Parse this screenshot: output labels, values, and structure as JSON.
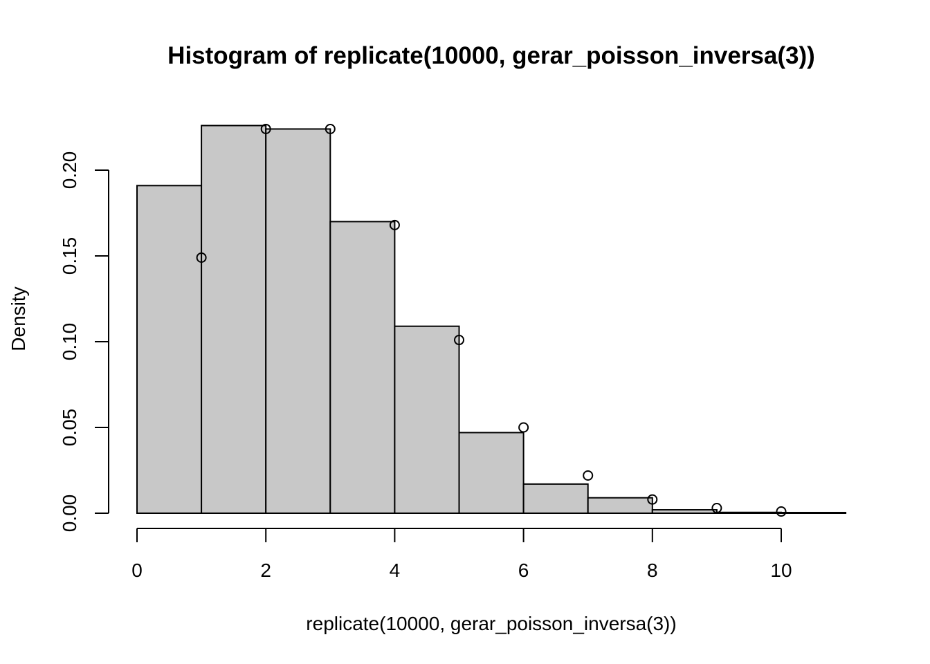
{
  "chart_data": {
    "type": "bar",
    "title": "Histogram of replicate(10000, gerar_poisson_inversa(3))",
    "xlabel": "replicate(10000, gerar_poisson_inversa(3))",
    "ylabel": "Density",
    "xlim": [
      0,
      11
    ],
    "ylim": [
      0,
      0.225
    ],
    "xticks": [
      0,
      2,
      4,
      6,
      8,
      10
    ],
    "xtick_labels": [
      "0",
      "2",
      "4",
      "6",
      "8",
      "10"
    ],
    "yticks": [
      0,
      0.05,
      0.1,
      0.15,
      0.2
    ],
    "ytick_labels": [
      "0.00",
      "0.05",
      "0.10",
      "0.15",
      "0.20"
    ],
    "bins": [
      {
        "start": 0,
        "end": 1,
        "density": 0.191
      },
      {
        "start": 1,
        "end": 2,
        "density": 0.226
      },
      {
        "start": 2,
        "end": 3,
        "density": 0.224
      },
      {
        "start": 3,
        "end": 4,
        "density": 0.17
      },
      {
        "start": 4,
        "end": 5,
        "density": 0.109
      },
      {
        "start": 5,
        "end": 6,
        "density": 0.047
      },
      {
        "start": 6,
        "end": 7,
        "density": 0.017
      },
      {
        "start": 7,
        "end": 8,
        "density": 0.009
      },
      {
        "start": 8,
        "end": 9,
        "density": 0.002
      },
      {
        "start": 9,
        "end": 10,
        "density": 0.0005
      },
      {
        "start": 10,
        "end": 11,
        "density": 0.0004
      }
    ],
    "points": {
      "x": [
        1,
        2,
        3,
        4,
        5,
        6,
        7,
        8,
        9,
        10
      ],
      "y": [
        0.149,
        0.224,
        0.224,
        0.168,
        0.101,
        0.05,
        0.022,
        0.008,
        0.003,
        0.001
      ]
    },
    "grid": false,
    "legend": "none"
  }
}
